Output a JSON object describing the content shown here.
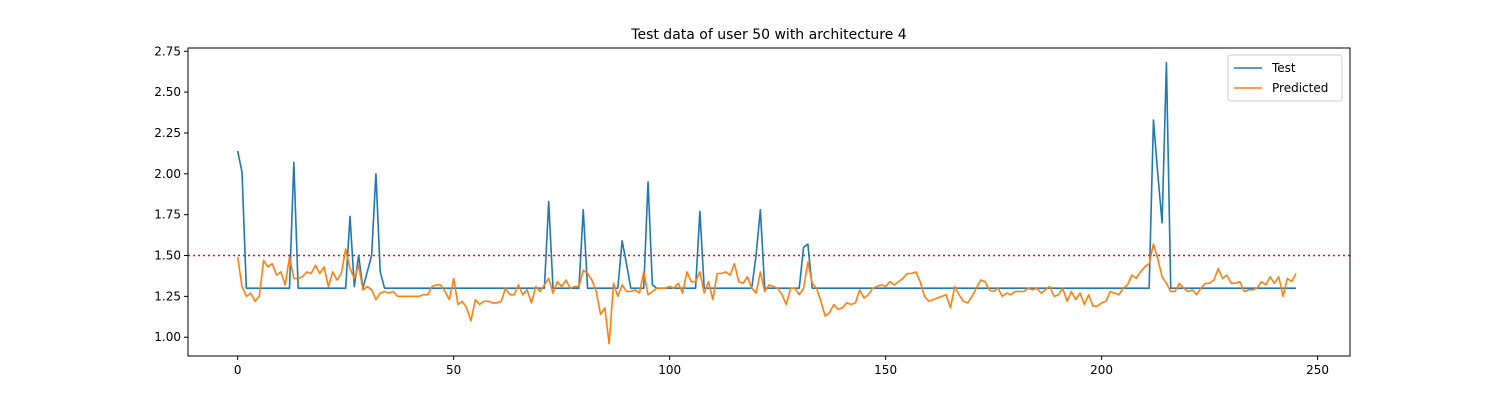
{
  "chart_data": {
    "type": "line",
    "title": "Test data of user 50 with architecture 4",
    "xlabel": "",
    "ylabel": "",
    "xlim": [
      -11.5,
      257.5
    ],
    "ylim": [
      0.885,
      2.77
    ],
    "xticks": [
      0,
      50,
      100,
      150,
      200,
      250
    ],
    "yticks": [
      1.0,
      1.25,
      1.5,
      1.75,
      2.0,
      2.25,
      2.5,
      2.75
    ],
    "ytick_labels": [
      "1.00",
      "1.25",
      "1.50",
      "1.75",
      "2.00",
      "2.25",
      "2.50",
      "2.75"
    ],
    "grid": false,
    "legend": "top-right",
    "threshold": {
      "value": 1.5,
      "color": "#ff0000",
      "style": "dotted"
    },
    "series": [
      {
        "name": "Test",
        "color": "#1f77b4",
        "points": [
          [
            0,
            2.14
          ],
          [
            1,
            2.01
          ],
          [
            2,
            1.3
          ],
          [
            12,
            1.3
          ],
          [
            13,
            2.07
          ],
          [
            14,
            1.3
          ],
          [
            25,
            1.3
          ],
          [
            26,
            1.74
          ],
          [
            27,
            1.31
          ],
          [
            28,
            1.5
          ],
          [
            29,
            1.3
          ],
          [
            31,
            1.5
          ],
          [
            32,
            2.0
          ],
          [
            33,
            1.4
          ],
          [
            34,
            1.3
          ],
          [
            71,
            1.3
          ],
          [
            72,
            1.83
          ],
          [
            73,
            1.3
          ],
          [
            79,
            1.3
          ],
          [
            80,
            1.78
          ],
          [
            81,
            1.3
          ],
          [
            88,
            1.3
          ],
          [
            89,
            1.59
          ],
          [
            90,
            1.45
          ],
          [
            91,
            1.3
          ],
          [
            94,
            1.3
          ],
          [
            95,
            1.95
          ],
          [
            96,
            1.32
          ],
          [
            97,
            1.3
          ],
          [
            106,
            1.3
          ],
          [
            107,
            1.77
          ],
          [
            108,
            1.3
          ],
          [
            119,
            1.3
          ],
          [
            120,
            1.5
          ],
          [
            121,
            1.78
          ],
          [
            122,
            1.3
          ],
          [
            130,
            1.3
          ],
          [
            131,
            1.55
          ],
          [
            132,
            1.57
          ],
          [
            133,
            1.3
          ],
          [
            211,
            1.3
          ],
          [
            212,
            2.33
          ],
          [
            213,
            2.0
          ],
          [
            214,
            1.7
          ],
          [
            215,
            2.68
          ],
          [
            216,
            1.3
          ],
          [
            245,
            1.3
          ]
        ]
      },
      {
        "name": "Predicted",
        "color": "#ff7f0e",
        "points": [
          [
            0,
            1.49
          ],
          [
            1,
            1.31
          ],
          [
            2,
            1.25
          ],
          [
            3,
            1.27
          ],
          [
            4,
            1.22
          ],
          [
            5,
            1.25
          ],
          [
            6,
            1.47
          ],
          [
            7,
            1.43
          ],
          [
            8,
            1.45
          ],
          [
            9,
            1.38
          ],
          [
            10,
            1.4
          ],
          [
            11,
            1.32
          ],
          [
            12,
            1.49
          ],
          [
            13,
            1.36
          ],
          [
            14,
            1.36
          ],
          [
            15,
            1.37
          ],
          [
            16,
            1.4
          ],
          [
            17,
            1.39
          ],
          [
            18,
            1.44
          ],
          [
            19,
            1.39
          ],
          [
            20,
            1.43
          ],
          [
            21,
            1.31
          ],
          [
            22,
            1.4
          ],
          [
            23,
            1.35
          ],
          [
            24,
            1.39
          ],
          [
            25,
            1.54
          ],
          [
            26,
            1.42
          ],
          [
            27,
            1.36
          ],
          [
            28,
            1.44
          ],
          [
            29,
            1.29
          ],
          [
            30,
            1.31
          ],
          [
            31,
            1.29
          ],
          [
            32,
            1.23
          ],
          [
            33,
            1.27
          ],
          [
            34,
            1.28
          ],
          [
            35,
            1.27
          ],
          [
            36,
            1.28
          ],
          [
            37,
            1.25
          ],
          [
            38,
            1.25
          ],
          [
            39,
            1.25
          ],
          [
            40,
            1.25
          ],
          [
            41,
            1.25
          ],
          [
            42,
            1.25
          ],
          [
            43,
            1.26
          ],
          [
            44,
            1.26
          ],
          [
            45,
            1.31
          ],
          [
            46,
            1.32
          ],
          [
            47,
            1.32
          ],
          [
            48,
            1.28
          ],
          [
            49,
            1.23
          ],
          [
            50,
            1.36
          ],
          [
            51,
            1.2
          ],
          [
            52,
            1.22
          ],
          [
            53,
            1.18
          ],
          [
            54,
            1.1
          ],
          [
            55,
            1.23
          ],
          [
            56,
            1.2
          ],
          [
            57,
            1.22
          ],
          [
            58,
            1.22
          ],
          [
            59,
            1.21
          ],
          [
            60,
            1.21
          ],
          [
            61,
            1.22
          ],
          [
            62,
            1.3
          ],
          [
            63,
            1.26
          ],
          [
            64,
            1.26
          ],
          [
            65,
            1.32
          ],
          [
            66,
            1.26
          ],
          [
            67,
            1.29
          ],
          [
            68,
            1.21
          ],
          [
            69,
            1.31
          ],
          [
            70,
            1.28
          ],
          [
            71,
            1.32
          ],
          [
            72,
            1.36
          ],
          [
            73,
            1.27
          ],
          [
            74,
            1.34
          ],
          [
            75,
            1.31
          ],
          [
            76,
            1.35
          ],
          [
            77,
            1.3
          ],
          [
            78,
            1.31
          ],
          [
            79,
            1.31
          ],
          [
            80,
            1.41
          ],
          [
            81,
            1.39
          ],
          [
            82,
            1.35
          ],
          [
            83,
            1.28
          ],
          [
            84,
            1.14
          ],
          [
            85,
            1.18
          ],
          [
            86,
            0.96
          ],
          [
            87,
            1.33
          ],
          [
            88,
            1.25
          ],
          [
            89,
            1.32
          ],
          [
            90,
            1.28
          ],
          [
            91,
            1.28
          ],
          [
            92,
            1.29
          ],
          [
            93,
            1.27
          ],
          [
            94,
            1.4
          ],
          [
            95,
            1.26
          ],
          [
            96,
            1.28
          ],
          [
            97,
            1.3
          ],
          [
            98,
            1.3
          ],
          [
            99,
            1.3
          ],
          [
            100,
            1.31
          ],
          [
            101,
            1.3
          ],
          [
            102,
            1.33
          ],
          [
            103,
            1.27
          ],
          [
            104,
            1.4
          ],
          [
            105,
            1.34
          ],
          [
            106,
            1.34
          ],
          [
            107,
            1.4
          ],
          [
            108,
            1.27
          ],
          [
            109,
            1.34
          ],
          [
            110,
            1.23
          ],
          [
            111,
            1.39
          ],
          [
            112,
            1.39
          ],
          [
            113,
            1.4
          ],
          [
            114,
            1.38
          ],
          [
            115,
            1.45
          ],
          [
            116,
            1.34
          ],
          [
            117,
            1.33
          ],
          [
            118,
            1.37
          ],
          [
            119,
            1.3
          ],
          [
            120,
            1.27
          ],
          [
            121,
            1.4
          ],
          [
            122,
            1.28
          ],
          [
            123,
            1.32
          ],
          [
            124,
            1.31
          ],
          [
            125,
            1.3
          ],
          [
            126,
            1.26
          ],
          [
            127,
            1.2
          ],
          [
            128,
            1.3
          ],
          [
            129,
            1.3
          ],
          [
            130,
            1.26
          ],
          [
            131,
            1.3
          ],
          [
            132,
            1.46
          ],
          [
            133,
            1.33
          ],
          [
            134,
            1.3
          ],
          [
            135,
            1.22
          ],
          [
            136,
            1.13
          ],
          [
            137,
            1.15
          ],
          [
            138,
            1.2
          ],
          [
            139,
            1.17
          ],
          [
            140,
            1.18
          ],
          [
            141,
            1.21
          ],
          [
            142,
            1.2
          ],
          [
            143,
            1.21
          ],
          [
            144,
            1.29
          ],
          [
            145,
            1.24
          ],
          [
            146,
            1.26
          ],
          [
            147,
            1.3
          ],
          [
            148,
            1.31
          ],
          [
            149,
            1.32
          ],
          [
            150,
            1.31
          ],
          [
            151,
            1.34
          ],
          [
            152,
            1.32
          ],
          [
            153,
            1.34
          ],
          [
            154,
            1.36
          ],
          [
            155,
            1.39
          ],
          [
            156,
            1.39
          ],
          [
            157,
            1.4
          ],
          [
            158,
            1.34
          ],
          [
            159,
            1.25
          ],
          [
            160,
            1.22
          ],
          [
            161,
            1.23
          ],
          [
            162,
            1.24
          ],
          [
            163,
            1.25
          ],
          [
            164,
            1.26
          ],
          [
            165,
            1.18
          ],
          [
            166,
            1.31
          ],
          [
            167,
            1.26
          ],
          [
            168,
            1.22
          ],
          [
            169,
            1.21
          ],
          [
            170,
            1.25
          ],
          [
            171,
            1.3
          ],
          [
            172,
            1.35
          ],
          [
            173,
            1.34
          ],
          [
            174,
            1.29
          ],
          [
            175,
            1.28
          ],
          [
            176,
            1.3
          ],
          [
            177,
            1.25
          ],
          [
            178,
            1.27
          ],
          [
            179,
            1.26
          ],
          [
            180,
            1.28
          ],
          [
            181,
            1.28
          ],
          [
            182,
            1.28
          ],
          [
            183,
            1.3
          ],
          [
            184,
            1.29
          ],
          [
            185,
            1.3
          ],
          [
            186,
            1.27
          ],
          [
            187,
            1.29
          ],
          [
            188,
            1.31
          ],
          [
            189,
            1.25
          ],
          [
            190,
            1.26
          ],
          [
            191,
            1.3
          ],
          [
            192,
            1.22
          ],
          [
            193,
            1.28
          ],
          [
            194,
            1.23
          ],
          [
            195,
            1.27
          ],
          [
            196,
            1.2
          ],
          [
            197,
            1.26
          ],
          [
            198,
            1.19
          ],
          [
            199,
            1.19
          ],
          [
            200,
            1.21
          ],
          [
            201,
            1.22
          ],
          [
            202,
            1.28
          ],
          [
            203,
            1.27
          ],
          [
            204,
            1.26
          ],
          [
            205,
            1.3
          ],
          [
            206,
            1.32
          ],
          [
            207,
            1.38
          ],
          [
            208,
            1.36
          ],
          [
            209,
            1.4
          ],
          [
            210,
            1.43
          ],
          [
            211,
            1.45
          ],
          [
            212,
            1.57
          ],
          [
            213,
            1.48
          ],
          [
            214,
            1.37
          ],
          [
            215,
            1.33
          ],
          [
            216,
            1.28
          ],
          [
            217,
            1.28
          ],
          [
            218,
            1.33
          ],
          [
            219,
            1.3
          ],
          [
            220,
            1.28
          ],
          [
            221,
            1.29
          ],
          [
            222,
            1.26
          ],
          [
            223,
            1.3
          ],
          [
            224,
            1.33
          ],
          [
            225,
            1.33
          ],
          [
            226,
            1.35
          ],
          [
            227,
            1.42
          ],
          [
            228,
            1.36
          ],
          [
            229,
            1.38
          ],
          [
            230,
            1.33
          ],
          [
            231,
            1.33
          ],
          [
            232,
            1.34
          ],
          [
            233,
            1.28
          ],
          [
            234,
            1.29
          ],
          [
            235,
            1.29
          ],
          [
            236,
            1.3
          ],
          [
            237,
            1.34
          ],
          [
            238,
            1.32
          ],
          [
            239,
            1.37
          ],
          [
            240,
            1.33
          ],
          [
            241,
            1.37
          ],
          [
            242,
            1.25
          ],
          [
            243,
            1.36
          ],
          [
            244,
            1.34
          ],
          [
            245,
            1.39
          ]
        ]
      }
    ]
  }
}
